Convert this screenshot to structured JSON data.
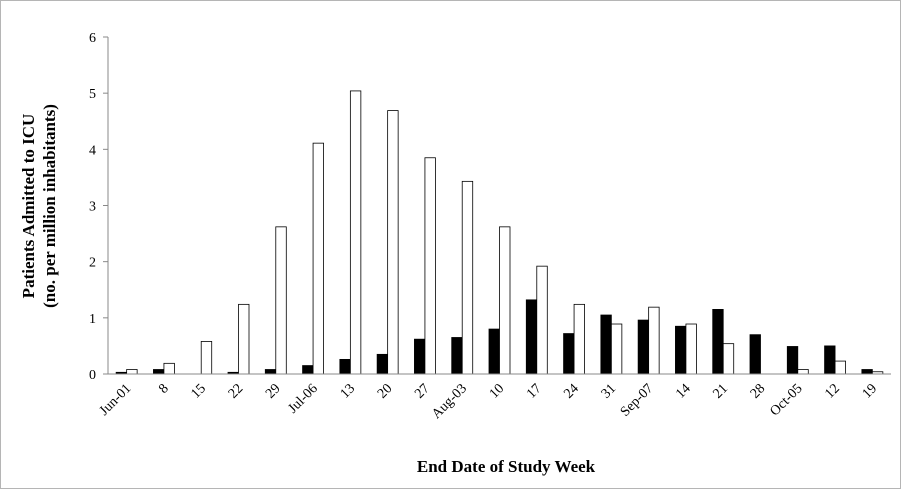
{
  "chart_data": {
    "type": "bar",
    "ylabel_line1": "Patients Admitted to ICU",
    "ylabel_line2": "(no. per million inhabitants)",
    "xlabel": "End Date of Study Week",
    "ylim": [
      0,
      6
    ],
    "yticks": [
      0,
      1,
      2,
      3,
      4,
      5,
      6
    ],
    "grid": false,
    "legend": "none",
    "categories": [
      "Jun-01",
      "8",
      "15",
      "22",
      "29",
      "Jul-06",
      "13",
      "20",
      "27",
      "Aug-03",
      "10",
      "17",
      "24",
      "31",
      "Sep-07",
      "14",
      "21",
      "28",
      "Oct-05",
      "12",
      "19"
    ],
    "series": [
      {
        "fill": "#000000",
        "values": [
          0.03,
          0.08,
          0,
          0.03,
          0.08,
          0.15,
          0.26,
          0.35,
          0.62,
          0.65,
          0.8,
          1.32,
          0.72,
          1.05,
          0.96,
          0.85,
          1.15,
          0.7,
          0.49,
          0.5,
          0.08
        ]
      },
      {
        "fill": "#ffffff",
        "values": [
          0.08,
          0.19,
          0.58,
          1.24,
          2.62,
          4.11,
          5.04,
          4.69,
          3.85,
          3.43,
          2.62,
          1.92,
          1.24,
          0.89,
          1.19,
          0.89,
          0.54,
          0,
          0.08,
          0.23,
          0.04
        ]
      }
    ]
  }
}
